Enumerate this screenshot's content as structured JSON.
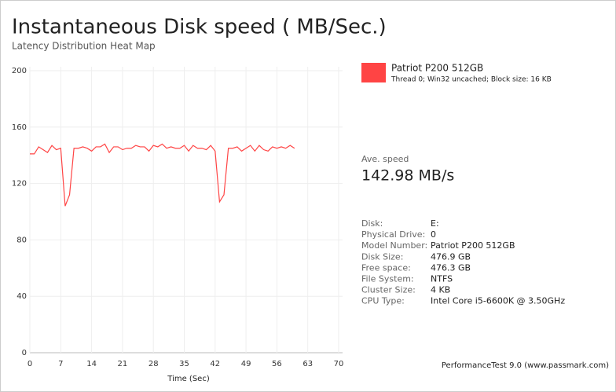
{
  "chart_data": {
    "type": "line",
    "title": "Instantaneous Disk speed ( MB/Sec.)",
    "subtitle": "Latency Distribution Heat Map",
    "x_label": "Time (Sec)",
    "x": [
      0,
      1,
      2,
      3,
      4,
      5,
      6,
      7,
      8,
      9,
      10,
      11,
      12,
      13,
      14,
      15,
      16,
      17,
      18,
      19,
      20,
      21,
      22,
      23,
      24,
      25,
      26,
      27,
      28,
      29,
      30,
      31,
      32,
      33,
      34,
      35,
      36,
      37,
      38,
      39,
      40,
      41,
      42,
      43,
      44,
      45,
      46,
      47,
      48,
      49,
      50,
      51,
      52,
      53,
      54,
      55,
      56,
      57,
      58,
      59,
      60
    ],
    "series": [
      {
        "name": "Patriot P200 512GB",
        "description": "Thread 0; Win32 uncached; Block size: 16 KB",
        "color": "#ff4444",
        "values": [
          141,
          141,
          146,
          144,
          142,
          147,
          144,
          145,
          104,
          112,
          145,
          145,
          146,
          145,
          143,
          146,
          146,
          148,
          142,
          146,
          146,
          144,
          145,
          145,
          147,
          146,
          146,
          143,
          147,
          146,
          148,
          145,
          146,
          145,
          145,
          147,
          143,
          147,
          145,
          145,
          144,
          147,
          143,
          107,
          112,
          145,
          145,
          146,
          143,
          145,
          147,
          143,
          147,
          144,
          143,
          146,
          145,
          146,
          145,
          147,
          145
        ]
      }
    ],
    "xlim": [
      0,
      70
    ],
    "xticks": [
      0,
      7,
      14,
      21,
      28,
      35,
      42,
      49,
      56,
      63,
      70
    ],
    "ylim": [
      0,
      200
    ],
    "yticks": [
      0,
      40,
      80,
      120,
      160,
      200
    ],
    "grid": true
  },
  "panel": {
    "avg_label": "Ave. speed",
    "avg_value": "142.98 MB/s",
    "details": [
      [
        "Disk:",
        "E:"
      ],
      [
        "Physical Drive:",
        "0"
      ],
      [
        "Model Number:",
        "Patriot P200 512GB"
      ],
      [
        "Disk Size:",
        "476.9 GB"
      ],
      [
        "Free space:",
        "476.3 GB"
      ],
      [
        "File System:",
        "NTFS"
      ],
      [
        "Cluster Size:",
        "4 KB"
      ],
      [
        "CPU Type:",
        "Intel Core i5-6600K @ 3.50GHz"
      ]
    ],
    "footer": "PerformanceTest 9.0 (www.passmark.com)"
  }
}
